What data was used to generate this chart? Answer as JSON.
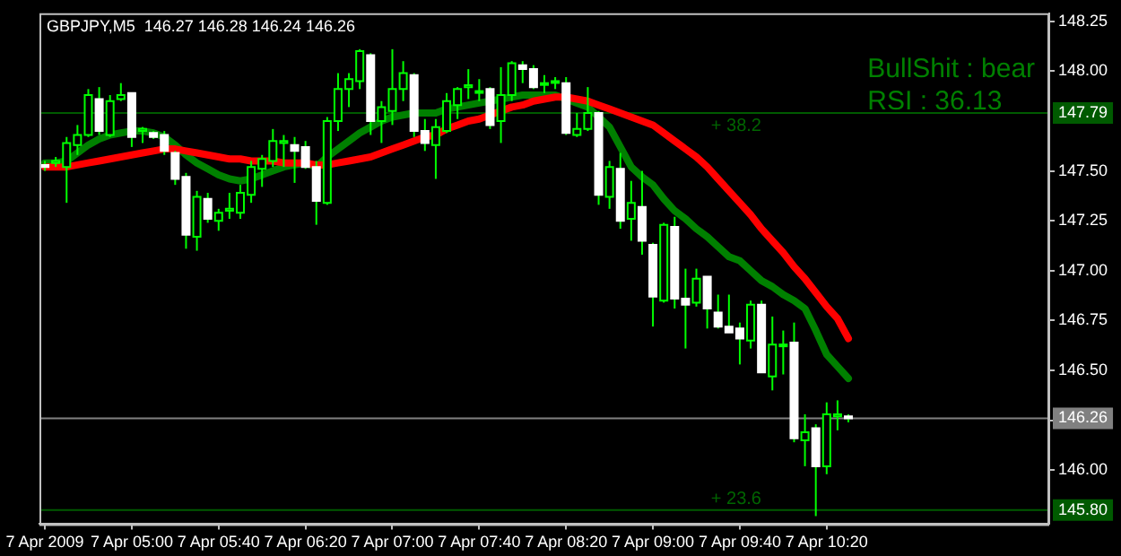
{
  "chart_data": {
    "type": "candlestick",
    "title": "GBPJPY,M5  146.27 146.28 146.24 146.26",
    "annotations": [
      "BullShit : bear",
      "RSI : 36.13",
      {
        "text": "+ 38.2",
        "y": 147.79
      },
      {
        "text": "+ 23.6",
        "y": 145.8
      }
    ],
    "categories": [
      "7 Apr 2009",
      null,
      null,
      null,
      null,
      null,
      null,
      null,
      "7 Apr 05:00",
      null,
      null,
      null,
      null,
      null,
      null,
      null,
      "7 Apr 05:40",
      null,
      null,
      null,
      null,
      null,
      null,
      null,
      "7 Apr 06:20",
      null,
      null,
      null,
      null,
      null,
      null,
      null,
      "7 Apr 07:00",
      null,
      null,
      null,
      null,
      null,
      null,
      null,
      "7 Apr 07:40",
      null,
      null,
      null,
      null,
      null,
      null,
      null,
      "7 Apr 08:20",
      null,
      null,
      null,
      null,
      null,
      null,
      null,
      "7 Apr 09:00",
      null,
      null,
      null,
      null,
      null,
      null,
      null,
      "7 Apr 09:40",
      null,
      null,
      null,
      null,
      null,
      null,
      null,
      "7 Apr 10:20",
      null,
      null
    ],
    "ohlc": [
      [
        147.53,
        147.55,
        147.5,
        147.52
      ],
      [
        147.54,
        147.57,
        147.52,
        147.55
      ],
      [
        147.52,
        147.67,
        147.34,
        147.64
      ],
      [
        147.63,
        147.73,
        147.58,
        147.68
      ],
      [
        147.68,
        147.91,
        147.67,
        147.88
      ],
      [
        147.86,
        147.92,
        147.68,
        147.7
      ],
      [
        147.68,
        147.88,
        147.67,
        147.85
      ],
      [
        147.86,
        147.94,
        147.85,
        147.88
      ],
      [
        147.89,
        147.89,
        147.62,
        147.67
      ],
      [
        147.7,
        147.72,
        147.64,
        147.71
      ],
      [
        147.69,
        147.7,
        147.66,
        147.67
      ],
      [
        147.68,
        147.7,
        147.58,
        147.6
      ],
      [
        147.59,
        147.6,
        147.43,
        147.46
      ],
      [
        147.47,
        147.49,
        147.11,
        147.18
      ],
      [
        147.17,
        147.4,
        147.1,
        147.37
      ],
      [
        147.36,
        147.39,
        147.24,
        147.26
      ],
      [
        147.25,
        147.31,
        147.2,
        147.29
      ],
      [
        147.3,
        147.39,
        147.26,
        147.31
      ],
      [
        147.29,
        147.43,
        147.26,
        147.39
      ],
      [
        147.38,
        147.55,
        147.34,
        147.52
      ],
      [
        147.51,
        147.58,
        147.42,
        147.56
      ],
      [
        147.55,
        147.71,
        147.52,
        147.65
      ],
      [
        147.64,
        147.68,
        147.52,
        147.65
      ],
      [
        147.63,
        147.67,
        147.44,
        147.6
      ],
      [
        147.62,
        147.65,
        147.51,
        147.52
      ],
      [
        147.52,
        147.55,
        147.23,
        147.35
      ],
      [
        147.34,
        147.77,
        147.33,
        147.75
      ],
      [
        147.75,
        147.99,
        147.7,
        147.91
      ],
      [
        147.91,
        147.99,
        147.82,
        147.96
      ],
      [
        147.95,
        148.11,
        147.91,
        148.1
      ],
      [
        148.08,
        148.09,
        147.68,
        147.75
      ],
      [
        147.75,
        147.85,
        147.64,
        147.82
      ],
      [
        147.8,
        148.11,
        147.73,
        147.91
      ],
      [
        147.91,
        148.05,
        147.85,
        147.99
      ],
      [
        147.98,
        147.99,
        147.67,
        147.7
      ],
      [
        147.7,
        147.76,
        147.6,
        147.64
      ],
      [
        147.63,
        147.76,
        147.46,
        147.72
      ],
      [
        147.7,
        147.89,
        147.69,
        147.85
      ],
      [
        147.83,
        147.92,
        147.76,
        147.91
      ],
      [
        147.92,
        148.01,
        147.86,
        147.93
      ],
      [
        147.9,
        147.96,
        147.85,
        147.9
      ],
      [
        147.91,
        147.92,
        147.71,
        147.73
      ],
      [
        147.75,
        148.02,
        147.64,
        147.88
      ],
      [
        147.88,
        148.05,
        147.85,
        148.04
      ],
      [
        148.03,
        148.05,
        147.94,
        148.01
      ],
      [
        148.01,
        148.03,
        147.91,
        147.92
      ],
      [
        147.94,
        147.98,
        147.89,
        147.94
      ],
      [
        147.95,
        147.97,
        147.91,
        147.95
      ],
      [
        147.94,
        147.97,
        147.68,
        147.69
      ],
      [
        147.68,
        147.79,
        147.67,
        147.71
      ],
      [
        147.71,
        147.92,
        147.7,
        147.79
      ],
      [
        147.79,
        147.8,
        147.33,
        147.38
      ],
      [
        147.37,
        147.55,
        147.31,
        147.52
      ],
      [
        147.51,
        147.59,
        147.21,
        147.25
      ],
      [
        147.26,
        147.45,
        147.15,
        147.34
      ],
      [
        147.32,
        147.5,
        147.08,
        147.15
      ],
      [
        147.13,
        147.14,
        146.72,
        146.87
      ],
      [
        146.85,
        147.24,
        146.84,
        147.23
      ],
      [
        147.22,
        147.27,
        146.81,
        146.86
      ],
      [
        146.86,
        147.01,
        146.61,
        146.83
      ],
      [
        146.84,
        147.01,
        146.82,
        146.96
      ],
      [
        146.97,
        146.97,
        146.71,
        146.81
      ],
      [
        146.79,
        146.88,
        146.71,
        146.72
      ],
      [
        146.72,
        146.88,
        146.69,
        146.69
      ],
      [
        146.71,
        146.74,
        146.53,
        146.66
      ],
      [
        146.65,
        146.85,
        146.61,
        146.83
      ],
      [
        146.83,
        146.85,
        146.49,
        146.49
      ],
      [
        146.47,
        146.77,
        146.4,
        146.63
      ],
      [
        146.63,
        146.7,
        146.48,
        146.63
      ],
      [
        146.64,
        146.74,
        146.14,
        146.16
      ],
      [
        146.15,
        146.28,
        146.02,
        146.19
      ],
      [
        146.21,
        146.23,
        145.77,
        146.02
      ],
      [
        146.02,
        146.34,
        145.98,
        146.28
      ],
      [
        146.27,
        146.35,
        146.2,
        146.28
      ],
      [
        146.27,
        146.28,
        146.24,
        146.26
      ]
    ],
    "color": "#00ff00",
    "colors": [
      "#ffffff",
      "#000000",
      "#000000",
      "#000000",
      "#000000",
      "#ffffff",
      "#000000",
      "#000000",
      "#ffffff",
      "#000000",
      "#ffffff",
      "#ffffff",
      "#ffffff",
      "#ffffff",
      "#000000",
      "#ffffff",
      "#000000",
      "#000000",
      "#000000",
      "#000000",
      "#000000",
      "#000000",
      "#000000",
      "#ffffff",
      "#ffffff",
      "#ffffff",
      "#000000",
      "#000000",
      "#000000",
      "#000000",
      "#ffffff",
      "#000000",
      "#000000",
      "#000000",
      "#ffffff",
      "#ffffff",
      "#000000",
      "#000000",
      "#000000",
      "#000000",
      "#000000",
      "#ffffff",
      "#000000",
      "#000000",
      "#ffffff",
      "#ffffff",
      "#000000",
      "#000000",
      "#ffffff",
      "#000000",
      "#000000",
      "#ffffff",
      "#000000",
      "#ffffff",
      "#000000",
      "#ffffff",
      "#ffffff",
      "#000000",
      "#ffffff",
      "#ffffff",
      "#000000",
      "#ffffff",
      "#ffffff",
      "#ffffff",
      "#ffffff",
      "#000000",
      "#ffffff",
      "#000000",
      "#000000",
      "#ffffff",
      "#000000",
      "#ffffff",
      "#000000",
      "#000000",
      "#ffffff"
    ],
    "series": [
      {
        "type": "line",
        "color": "#ff0000",
        "values": [
          147.52,
          147.52,
          147.52,
          147.53,
          147.54,
          147.55,
          147.56,
          147.57,
          147.58,
          147.59,
          147.6,
          147.61,
          147.61,
          147.6,
          147.59,
          147.58,
          147.57,
          147.56,
          147.56,
          147.55,
          147.55,
          147.55,
          147.54,
          147.54,
          147.54,
          147.53,
          147.53,
          147.54,
          147.55,
          147.56,
          147.57,
          147.59,
          147.61,
          147.63,
          147.65,
          147.67,
          147.68,
          147.71,
          147.73,
          147.75,
          147.76,
          147.78,
          147.8,
          147.82,
          147.83,
          147.85,
          147.86,
          147.87,
          147.87,
          147.86,
          147.85,
          147.83,
          147.81,
          147.79,
          147.77,
          147.75,
          147.73,
          147.69,
          147.65,
          147.61,
          147.57,
          147.52,
          147.46,
          147.4,
          147.34,
          147.28,
          147.21,
          147.15,
          147.09,
          147.02,
          146.96,
          146.89,
          146.82,
          146.76,
          146.66
        ]
      },
      {
        "type": "line",
        "color": "#008000",
        "values": [
          147.54,
          147.54,
          147.55,
          147.59,
          147.63,
          147.66,
          147.68,
          147.69,
          147.7,
          147.7,
          147.69,
          147.67,
          147.63,
          147.58,
          147.54,
          147.51,
          147.48,
          147.46,
          147.45,
          147.46,
          147.48,
          147.5,
          147.52,
          147.53,
          147.54,
          147.52,
          147.57,
          147.61,
          147.65,
          147.69,
          147.72,
          147.75,
          147.77,
          147.78,
          147.79,
          147.79,
          147.79,
          147.81,
          147.82,
          147.83,
          147.84,
          147.85,
          147.86,
          147.87,
          147.88,
          147.88,
          147.88,
          147.88,
          147.86,
          147.84,
          147.82,
          147.77,
          147.72,
          147.62,
          147.52,
          147.47,
          147.43,
          147.36,
          147.3,
          147.26,
          147.21,
          147.17,
          147.12,
          147.07,
          147.05,
          147.0,
          146.95,
          146.92,
          146.88,
          146.85,
          146.81,
          146.7,
          146.58,
          146.52,
          146.46
        ]
      }
    ],
    "marker": "none",
    "ylim": [
      145.73,
      148.29
    ],
    "yticks": [
      {
        "value": 148.25,
        "label": "148.25"
      },
      {
        "value": 148,
        "label": "148.00"
      },
      {
        "value": 147.5,
        "label": "147.50"
      },
      {
        "value": 147.25,
        "label": "147.25"
      },
      {
        "value": 147,
        "label": "147.00"
      },
      {
        "value": 146.75,
        "label": "146.75"
      },
      {
        "value": 146.5,
        "label": "146.50"
      },
      {
        "value": 146.25,
        "label": null
      },
      {
        "value": 146,
        "label": "146.00"
      }
    ],
    "ref_lines": [
      {
        "axis": "y",
        "value": 147.79,
        "label": "147.79",
        "color": "#005a00"
      },
      {
        "axis": "y",
        "value": 145.8,
        "label": "145.80",
        "color": "#005a00"
      },
      {
        "axis": "y",
        "value": 146.26,
        "label": "146.26",
        "color": "#808080"
      }
    ]
  }
}
